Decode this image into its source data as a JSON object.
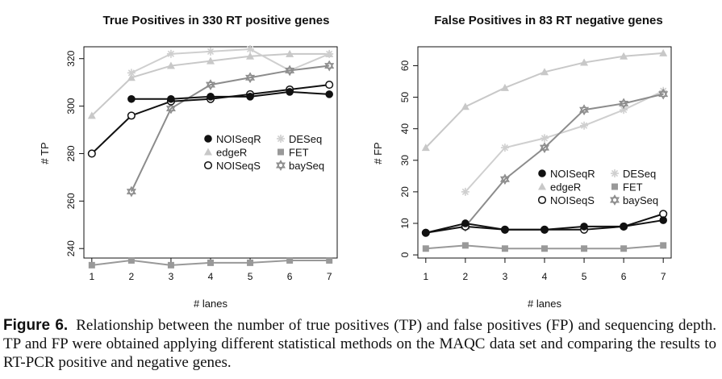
{
  "chart_data": [
    {
      "type": "line",
      "title": "True Positives in 330 RT positive genes",
      "xlabel": "# lanes",
      "ylabel": "# TP",
      "x": [
        1,
        2,
        3,
        4,
        5,
        6,
        7
      ],
      "xlim": [
        0.8,
        7.2
      ],
      "ylim": [
        236,
        325
      ],
      "yticks": [
        240,
        260,
        280,
        300,
        320
      ],
      "grid": false,
      "legend_position": "center-right",
      "series": [
        {
          "name": "NOISeqR",
          "marker": "filled-circle",
          "color": "#111111",
          "values": [
            null,
            303,
            303,
            304,
            304,
            306,
            305
          ]
        },
        {
          "name": "NOISeqS",
          "marker": "open-circle",
          "color": "#111111",
          "values": [
            280,
            296,
            302,
            303,
            305,
            307,
            309
          ]
        },
        {
          "name": "FET",
          "marker": "square",
          "color": "#999999",
          "values": [
            233,
            235,
            233,
            234,
            234,
            235,
            235
          ]
        },
        {
          "name": "edgeR",
          "marker": "triangle",
          "color": "#c8c8c8",
          "values": [
            296,
            312,
            317,
            319,
            321,
            322,
            322
          ]
        },
        {
          "name": "DESeq",
          "marker": "asterisk",
          "color": "#cfcfcf",
          "values": [
            null,
            314,
            322,
            323,
            324,
            315,
            322
          ]
        },
        {
          "name": "baySeq",
          "marker": "star-of-david",
          "color": "#8c8c8c",
          "values": [
            null,
            264,
            299,
            309,
            312,
            315,
            317
          ]
        }
      ]
    },
    {
      "type": "line",
      "title": "False Positives in 83 RT negative genes",
      "xlabel": "# lanes",
      "ylabel": "# FP",
      "x": [
        1,
        2,
        3,
        4,
        5,
        6,
        7
      ],
      "xlim": [
        0.8,
        7.2
      ],
      "ylim": [
        -1,
        66
      ],
      "yticks": [
        0,
        10,
        20,
        30,
        40,
        50,
        60
      ],
      "grid": false,
      "legend_position": "center-right",
      "series": [
        {
          "name": "NOISeqR",
          "marker": "filled-circle",
          "color": "#111111",
          "values": [
            7,
            10,
            8,
            8,
            9,
            9,
            11
          ]
        },
        {
          "name": "NOISeqS",
          "marker": "open-circle",
          "color": "#111111",
          "values": [
            7,
            9,
            8,
            8,
            8,
            9,
            13
          ]
        },
        {
          "name": "FET",
          "marker": "square",
          "color": "#999999",
          "values": [
            2,
            3,
            2,
            2,
            2,
            2,
            3
          ]
        },
        {
          "name": "edgeR",
          "marker": "triangle",
          "color": "#c8c8c8",
          "values": [
            34,
            47,
            53,
            58,
            61,
            63,
            64
          ]
        },
        {
          "name": "DESeq",
          "marker": "asterisk",
          "color": "#cfcfcf",
          "values": [
            null,
            20,
            34,
            37,
            41,
            46,
            52
          ]
        },
        {
          "name": "baySeq",
          "marker": "star-of-david",
          "color": "#8c8c8c",
          "values": [
            null,
            9,
            24,
            34,
            46,
            48,
            51
          ]
        }
      ]
    }
  ],
  "caption": {
    "label": "Figure 6.",
    "text": "Relationship between the number of true positives (TP) and false positives (FP) and sequencing depth. TP and FP were obtained applying different statistical methods on the MAQC data set and comparing the results to RT-PCR positive and negative genes."
  }
}
